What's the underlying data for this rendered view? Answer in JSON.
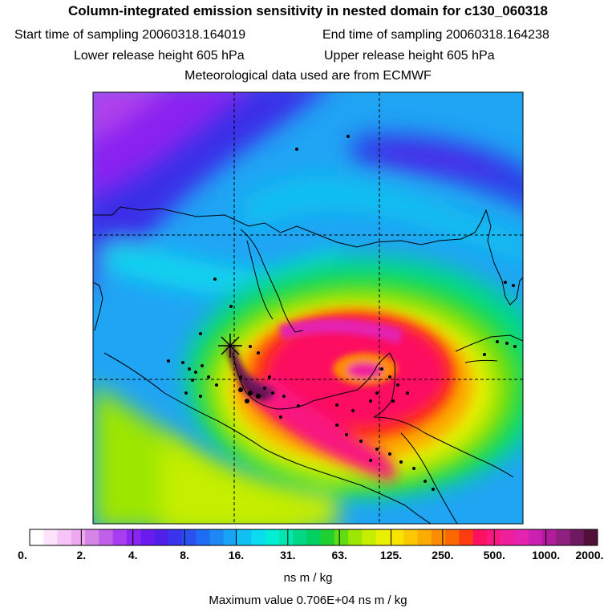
{
  "header": {
    "title": "Column-integrated emission sensitivity in nested domain for c130_060318",
    "start_label": "Start time of sampling 20060318.164019",
    "end_label": "End time of sampling 20060318.164238",
    "lower_label": "Lower release height  605 hPa",
    "upper_label": "Upper release height  605 hPa",
    "met_label": "Meteorological data used are from ECMWF"
  },
  "colorbar": {
    "tick_labels": [
      "0.",
      "2.",
      "4.",
      "8.",
      "16.",
      "31.",
      "63.",
      "125.",
      "250.",
      "500.",
      "1000.",
      "2000."
    ],
    "units": "ns m / kg",
    "colors": [
      "#ffffff",
      "#fbe3fb",
      "#f6c4f6",
      "#eea8ee",
      "#d684e6",
      "#c060e8",
      "#a83cf0",
      "#8a24f0",
      "#6a1cf0",
      "#5020e8",
      "#3a34ec",
      "#2a50f0",
      "#1e6cf4",
      "#1c88f4",
      "#18a4f4",
      "#10c0f0",
      "#08dcee",
      "#00eed6",
      "#00e6b0",
      "#00d888",
      "#00d060",
      "#20d030",
      "#60dc10",
      "#9ce600",
      "#c6ee00",
      "#e8f000",
      "#f8e400",
      "#fcc800",
      "#fcac00",
      "#fc8c00",
      "#fc6800",
      "#fc3c10",
      "#fc1060",
      "#f81880",
      "#f0209c",
      "#e424b0",
      "#cc20b0",
      "#b01c9c",
      "#902080",
      "#701860",
      "#501038"
    ]
  },
  "map": {
    "max_value_label": "Maximum value  0.706E+04 ns m / kg"
  },
  "colors": {
    "accent_magenta": "#fc1060",
    "dark_purple": "#501038"
  }
}
